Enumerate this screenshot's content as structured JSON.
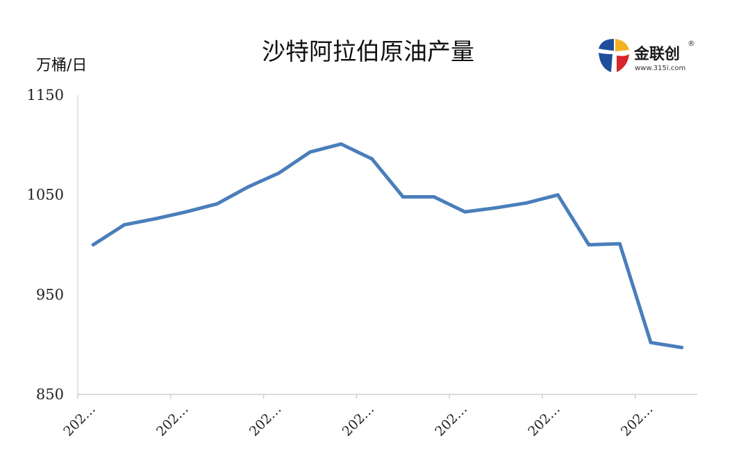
{
  "chart_data": {
    "type": "line",
    "title": "沙特阿拉伯原油产量",
    "ylabel": "万桶/日",
    "xlabel": "",
    "ylim": [
      850,
      1150
    ],
    "yticks": [
      850,
      950,
      1050,
      1150
    ],
    "x_tick_labels": [
      "202…",
      "202…",
      "202…",
      "202…",
      "202…",
      "202…",
      "202…"
    ],
    "x_tick_every": 3,
    "grid": false,
    "legend": "none",
    "series": [
      {
        "color": "#4a7ebb",
        "values": [
          1000,
          1020,
          1026,
          1033,
          1041,
          1058,
          1072,
          1093,
          1101,
          1086,
          1048,
          1048,
          1033,
          1037,
          1042,
          1050,
          1000,
          1001,
          902,
          897
        ]
      }
    ]
  },
  "logo": {
    "name": "金联创",
    "url": "www.315i.com",
    "reg": "®",
    "colors": {
      "blue": "#1f4e9c",
      "red": "#d7262b",
      "yellow": "#f3b320"
    }
  }
}
